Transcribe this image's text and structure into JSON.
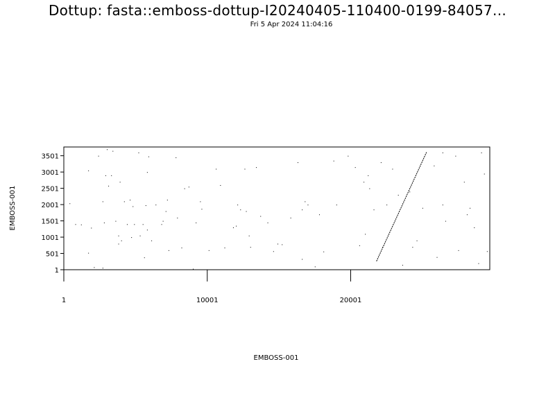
{
  "chart_data": {
    "type": "scatter",
    "title": "Dottup: fasta::emboss-dottup-I20240405-110400-0199-84057...",
    "subtitle": "Fri  5 Apr 2024 11:04:16",
    "xlabel": "EMBOSS-001",
    "ylabel": "EMBOSS-001",
    "xlim": [
      1,
      29700
    ],
    "ylim": [
      1,
      3770
    ],
    "x_ticks": [
      1,
      10001,
      20001
    ],
    "y_ticks": [
      1,
      501,
      1001,
      1501,
      2001,
      2501,
      3001,
      3501
    ],
    "x_tick_labels": [
      "1",
      "10001",
      "20001"
    ],
    "y_tick_labels": [
      "1",
      "501",
      "1001",
      "1501",
      "2001",
      "2501",
      "3001",
      "3501"
    ],
    "grid": false,
    "diagonal_match": {
      "x_start": 21800,
      "y_start": 260,
      "x_end": 25300,
      "y_end": 3620
    },
    "points": [
      [
        400,
        2040
      ],
      [
        800,
        1400
      ],
      [
        1200,
        1390
      ],
      [
        1700,
        3050
      ],
      [
        1700,
        520
      ],
      [
        1900,
        1290
      ],
      [
        2100,
        80
      ],
      [
        2400,
        3500
      ],
      [
        2700,
        60
      ],
      [
        2700,
        2100
      ],
      [
        2800,
        1450
      ],
      [
        2900,
        2900
      ],
      [
        3000,
        3700
      ],
      [
        3100,
        2580
      ],
      [
        3300,
        2900
      ],
      [
        3400,
        3650
      ],
      [
        3600,
        1500
      ],
      [
        3800,
        1050
      ],
      [
        3800,
        800
      ],
      [
        3900,
        2700
      ],
      [
        4000,
        900
      ],
      [
        4200,
        2100
      ],
      [
        4400,
        1400
      ],
      [
        4600,
        2150
      ],
      [
        4700,
        1000
      ],
      [
        4800,
        1950
      ],
      [
        4900,
        1400
      ],
      [
        5200,
        3600
      ],
      [
        5300,
        1050
      ],
      [
        5500,
        1400
      ],
      [
        5600,
        380
      ],
      [
        5700,
        1980
      ],
      [
        5800,
        3000
      ],
      [
        5800,
        1230
      ],
      [
        5900,
        3480
      ],
      [
        6100,
        900
      ],
      [
        6400,
        2000
      ],
      [
        6800,
        1400
      ],
      [
        6900,
        1500
      ],
      [
        7100,
        1800
      ],
      [
        7200,
        2150
      ],
      [
        7300,
        600
      ],
      [
        7800,
        3450
      ],
      [
        7900,
        1600
      ],
      [
        8200,
        680
      ],
      [
        8400,
        2500
      ],
      [
        8700,
        2550
      ],
      [
        9000,
        30
      ],
      [
        9200,
        1450
      ],
      [
        9500,
        2100
      ],
      [
        9600,
        1870
      ],
      [
        10100,
        600
      ],
      [
        10600,
        3100
      ],
      [
        10900,
        2600
      ],
      [
        11200,
        680
      ],
      [
        11800,
        1300
      ],
      [
        12000,
        1350
      ],
      [
        12100,
        2000
      ],
      [
        12300,
        1850
      ],
      [
        12600,
        3100
      ],
      [
        12700,
        1800
      ],
      [
        12900,
        1050
      ],
      [
        13000,
        700
      ],
      [
        13400,
        3150
      ],
      [
        13700,
        1650
      ],
      [
        14200,
        1450
      ],
      [
        14600,
        570
      ],
      [
        14900,
        800
      ],
      [
        15200,
        780
      ],
      [
        15800,
        1600
      ],
      [
        16300,
        3300
      ],
      [
        16600,
        1850
      ],
      [
        16600,
        330
      ],
      [
        16800,
        2100
      ],
      [
        17000,
        2000
      ],
      [
        17500,
        100
      ],
      [
        17800,
        1700
      ],
      [
        18100,
        560
      ],
      [
        18800,
        3350
      ],
      [
        19000,
        2000
      ],
      [
        19800,
        3500
      ],
      [
        20300,
        3150
      ],
      [
        20600,
        750
      ],
      [
        20900,
        2700
      ],
      [
        21000,
        1100
      ],
      [
        21200,
        2900
      ],
      [
        21300,
        2500
      ],
      [
        21600,
        1850
      ],
      [
        22100,
        3300
      ],
      [
        22200,
        700
      ],
      [
        22500,
        2000
      ],
      [
        22900,
        3100
      ],
      [
        23300,
        2300
      ],
      [
        23600,
        150
      ],
      [
        24100,
        2400
      ],
      [
        24300,
        700
      ],
      [
        24600,
        900
      ],
      [
        25000,
        1900
      ],
      [
        25800,
        3200
      ],
      [
        26000,
        390
      ],
      [
        26400,
        3600
      ],
      [
        26400,
        2000
      ],
      [
        26600,
        1500
      ],
      [
        27300,
        3500
      ],
      [
        27500,
        600
      ],
      [
        27900,
        2700
      ],
      [
        28100,
        1700
      ],
      [
        28300,
        1900
      ],
      [
        28600,
        1300
      ],
      [
        28900,
        200
      ],
      [
        29100,
        3600
      ],
      [
        29300,
        2950
      ],
      [
        29500,
        570
      ]
    ]
  }
}
